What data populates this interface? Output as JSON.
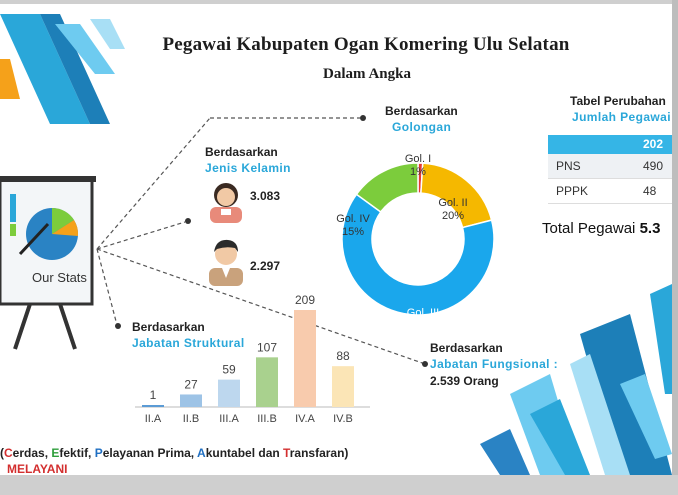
{
  "title": "Pegawai Kabupaten Ogan Komering Ulu Selatan",
  "subtitle": "Dalam Angka",
  "stats_board_text": "Our Stats",
  "section_gender": {
    "heading": "Berdasarkan",
    "subheading": "Jenis Kelamin",
    "female": "3.083",
    "male": "2.297"
  },
  "section_golongan": {
    "heading": "Berdasarkan",
    "subheading": "Golongan"
  },
  "section_struktural": {
    "heading": "Berdasarkan",
    "subheading": "Jabatan Struktural"
  },
  "section_fungsional": {
    "heading": "Berdasarkan",
    "subheading": "Jabatan Fungsional :",
    "value": "2.539 Orang"
  },
  "table": {
    "title": "Tabel Perubahan",
    "subtitle": "Jumlah Pegawai",
    "header_year": "202",
    "rows": [
      {
        "label": "PNS",
        "value": "490"
      },
      {
        "label": "PPPK",
        "value": "48"
      }
    ]
  },
  "total_label": "Total Pegawai",
  "total_value": "5.3",
  "footer": {
    "open": "(",
    "w1_first": "C",
    "w1_rest": "erdas, ",
    "w2_first": "E",
    "w2_rest": "fektif, ",
    "w3_first": "P",
    "w3_rest": "elayanan Prima, ",
    "w4_first": "A",
    "w4_rest": "kuntabel dan ",
    "w5_first": "T",
    "w5_rest": "ransfaran)",
    "tagline": "MELAYANI"
  },
  "colors": {
    "donut_red": "#e53935",
    "donut_yellow": "#f5b800",
    "donut_blue": "#1aa7ec",
    "donut_green": "#7ccc3c",
    "accent_blue": "#2aa7d9"
  },
  "chart_data": [
    {
      "type": "pie",
      "title": "Golongan",
      "categories": [
        "Gol. I",
        "Gol. II",
        "Gol. III",
        "Gol. IV"
      ],
      "values": [
        1,
        20,
        64,
        15
      ],
      "labels": [
        "1%",
        "20%",
        "64 %",
        "15%"
      ],
      "donut": true
    },
    {
      "type": "bar",
      "title": "Jabatan Struktural",
      "categories": [
        "II.A",
        "II.B",
        "III.A",
        "III.B",
        "IV.A",
        "IV.B"
      ],
      "values": [
        1,
        27,
        59,
        107,
        209,
        88
      ],
      "ylim": [
        0,
        209
      ],
      "colors": [
        "#5b9bd5",
        "#9dc3e6",
        "#bdd7ee",
        "#a9d18e",
        "#f8cbad",
        "#fbe5b6"
      ]
    }
  ]
}
